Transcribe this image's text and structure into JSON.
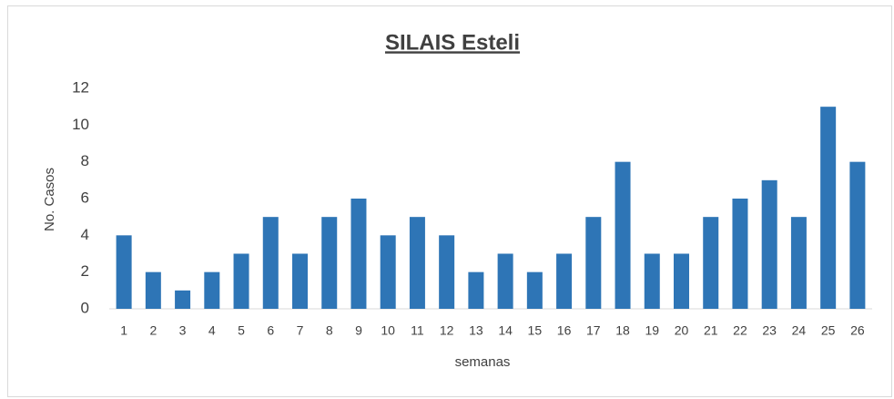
{
  "chart_data": {
    "type": "bar",
    "title": "SILAIS Esteli",
    "x_label": "semanas",
    "y_label": "No. Casos",
    "categories": [
      "1",
      "2",
      "3",
      "4",
      "5",
      "6",
      "7",
      "8",
      "9",
      "10",
      "11",
      "12",
      "13",
      "14",
      "15",
      "16",
      "17",
      "18",
      "19",
      "20",
      "21",
      "22",
      "23",
      "24",
      "25",
      "26"
    ],
    "values": [
      4,
      2,
      1,
      2,
      3,
      5,
      3,
      5,
      6,
      4,
      5,
      4,
      2,
      3,
      2,
      3,
      5,
      8,
      3,
      3,
      5,
      6,
      7,
      5,
      11,
      8
    ],
    "color": "#2e75b6",
    "ylim": [
      0,
      12
    ],
    "yticks": [
      0,
      2,
      4,
      6,
      8,
      10,
      12
    ],
    "grid": false
  }
}
